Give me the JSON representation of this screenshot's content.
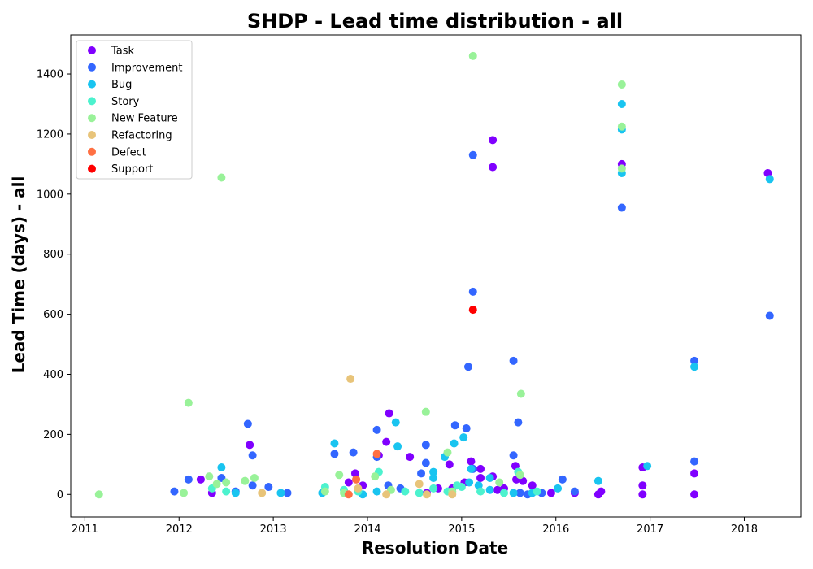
{
  "chart_data": {
    "type": "scatter",
    "title": "SHDP - Lead time distribution - all",
    "xlabel": "Resolution Date",
    "ylabel": "Lead Time (days) - all",
    "xlim": [
      2010.85,
      2018.6
    ],
    "ylim": [
      -75,
      1530
    ],
    "x_ticks": [
      2011,
      2012,
      2013,
      2014,
      2015,
      2016,
      2017,
      2018
    ],
    "y_ticks": [
      0,
      200,
      400,
      600,
      800,
      1000,
      1200,
      1400
    ],
    "grid": false,
    "legend_position": "top-left",
    "series": [
      {
        "name": "Task",
        "color": "#8000ff",
        "points": [
          [
            2012.23,
            50
          ],
          [
            2012.35,
            5
          ],
          [
            2012.75,
            165
          ],
          [
            2013.8,
            40
          ],
          [
            2013.87,
            70
          ],
          [
            2013.95,
            30
          ],
          [
            2014.12,
            130
          ],
          [
            2014.2,
            175
          ],
          [
            2014.23,
            270
          ],
          [
            2014.45,
            125
          ],
          [
            2014.63,
            5
          ],
          [
            2014.75,
            20
          ],
          [
            2014.87,
            100
          ],
          [
            2014.9,
            20
          ],
          [
            2015.03,
            40
          ],
          [
            2015.1,
            110
          ],
          [
            2015.2,
            85
          ],
          [
            2015.2,
            55
          ],
          [
            2015.33,
            1180
          ],
          [
            2015.33,
            1090
          ],
          [
            2015.33,
            60
          ],
          [
            2015.38,
            15
          ],
          [
            2015.45,
            20
          ],
          [
            2015.57,
            95
          ],
          [
            2015.58,
            50
          ],
          [
            2015.65,
            45
          ],
          [
            2015.75,
            30
          ],
          [
            2015.95,
            5
          ],
          [
            2016.2,
            5
          ],
          [
            2016.45,
            0
          ],
          [
            2016.48,
            10
          ],
          [
            2016.7,
            1100
          ],
          [
            2016.92,
            90
          ],
          [
            2016.92,
            30
          ],
          [
            2016.92,
            0
          ],
          [
            2017.47,
            70
          ],
          [
            2017.47,
            0
          ],
          [
            2018.25,
            1070
          ]
        ]
      },
      {
        "name": "Improvement",
        "color": "#3366ff",
        "points": [
          [
            2011.95,
            10
          ],
          [
            2012.1,
            50
          ],
          [
            2012.45,
            55
          ],
          [
            2012.6,
            10
          ],
          [
            2012.73,
            235
          ],
          [
            2012.78,
            130
          ],
          [
            2012.78,
            30
          ],
          [
            2012.95,
            25
          ],
          [
            2013.15,
            5
          ],
          [
            2013.65,
            135
          ],
          [
            2013.85,
            140
          ],
          [
            2014.1,
            215
          ],
          [
            2014.1,
            125
          ],
          [
            2014.22,
            30
          ],
          [
            2014.35,
            20
          ],
          [
            2014.57,
            70
          ],
          [
            2014.62,
            165
          ],
          [
            2014.62,
            105
          ],
          [
            2014.93,
            230
          ],
          [
            2015.05,
            220
          ],
          [
            2015.07,
            425
          ],
          [
            2015.12,
            1130
          ],
          [
            2015.12,
            675
          ],
          [
            2015.12,
            85
          ],
          [
            2015.55,
            445
          ],
          [
            2015.6,
            240
          ],
          [
            2015.55,
            130
          ],
          [
            2015.62,
            5
          ],
          [
            2015.7,
            0
          ],
          [
            2015.85,
            5
          ],
          [
            2016.07,
            50
          ],
          [
            2016.2,
            10
          ],
          [
            2016.7,
            955
          ],
          [
            2017.47,
            445
          ],
          [
            2017.47,
            110
          ],
          [
            2018.27,
            595
          ]
        ]
      },
      {
        "name": "Bug",
        "color": "#19c4f0",
        "points": [
          [
            2012.45,
            90
          ],
          [
            2012.6,
            5
          ],
          [
            2013.08,
            5
          ],
          [
            2013.52,
            5
          ],
          [
            2013.65,
            170
          ],
          [
            2013.95,
            0
          ],
          [
            2014.1,
            10
          ],
          [
            2014.3,
            240
          ],
          [
            2014.32,
            160
          ],
          [
            2014.7,
            75
          ],
          [
            2014.7,
            55
          ],
          [
            2014.82,
            125
          ],
          [
            2014.92,
            170
          ],
          [
            2015.02,
            190
          ],
          [
            2015.08,
            40
          ],
          [
            2015.1,
            85
          ],
          [
            2015.18,
            30
          ],
          [
            2015.3,
            55
          ],
          [
            2015.3,
            15
          ],
          [
            2015.55,
            5
          ],
          [
            2015.75,
            5
          ],
          [
            2016.02,
            20
          ],
          [
            2016.45,
            45
          ],
          [
            2016.7,
            1300
          ],
          [
            2016.7,
            1215
          ],
          [
            2016.7,
            1070
          ],
          [
            2016.97,
            95
          ],
          [
            2017.47,
            425
          ],
          [
            2018.27,
            1050
          ]
        ]
      },
      {
        "name": "Story",
        "color": "#4cf2ce",
        "points": [
          [
            2012.35,
            20
          ],
          [
            2012.5,
            10
          ],
          [
            2013.55,
            25
          ],
          [
            2013.75,
            15
          ],
          [
            2013.9,
            10
          ],
          [
            2014.12,
            75
          ],
          [
            2014.4,
            10
          ],
          [
            2014.55,
            5
          ],
          [
            2014.7,
            20
          ],
          [
            2014.85,
            10
          ],
          [
            2014.95,
            30
          ],
          [
            2015.0,
            25
          ],
          [
            2015.2,
            10
          ],
          [
            2015.45,
            5
          ],
          [
            2015.6,
            75
          ],
          [
            2015.8,
            10
          ]
        ]
      },
      {
        "name": "New Feature",
        "color": "#99f299",
        "points": [
          [
            2011.15,
            0
          ],
          [
            2012.05,
            5
          ],
          [
            2012.1,
            305
          ],
          [
            2012.32,
            60
          ],
          [
            2012.4,
            35
          ],
          [
            2012.45,
            1055
          ],
          [
            2012.5,
            40
          ],
          [
            2012.7,
            45
          ],
          [
            2012.8,
            55
          ],
          [
            2013.55,
            10
          ],
          [
            2013.7,
            65
          ],
          [
            2013.75,
            5
          ],
          [
            2014.08,
            60
          ],
          [
            2014.25,
            15
          ],
          [
            2014.62,
            275
          ],
          [
            2014.85,
            140
          ],
          [
            2014.9,
            10
          ],
          [
            2015.12,
            1460
          ],
          [
            2015.4,
            40
          ],
          [
            2015.63,
            335
          ],
          [
            2015.62,
            65
          ],
          [
            2016.7,
            1365
          ],
          [
            2016.7,
            1225
          ],
          [
            2016.7,
            1085
          ]
        ]
      },
      {
        "name": "Refactoring",
        "color": "#e8c47a",
        "points": [
          [
            2012.88,
            5
          ],
          [
            2013.82,
            385
          ],
          [
            2013.9,
            20
          ],
          [
            2014.2,
            0
          ],
          [
            2014.55,
            35
          ],
          [
            2014.63,
            0
          ],
          [
            2014.9,
            0
          ]
        ]
      },
      {
        "name": "Defect",
        "color": "#ff7043",
        "points": [
          [
            2013.8,
            0
          ],
          [
            2013.88,
            50
          ],
          [
            2014.1,
            135
          ]
        ]
      },
      {
        "name": "Support",
        "color": "#ff0000",
        "points": [
          [
            2015.12,
            615
          ]
        ]
      }
    ]
  }
}
